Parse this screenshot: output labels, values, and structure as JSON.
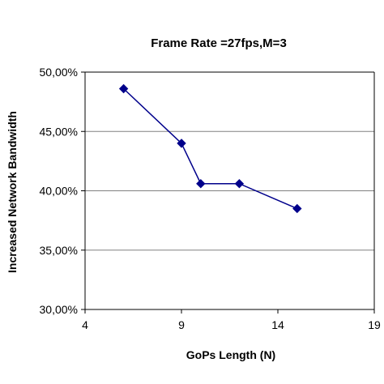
{
  "chart_data": {
    "type": "line",
    "title": "Frame Rate =27fps,M=3",
    "xlabel": "GoPs Length (N)",
    "ylabel": "Increased Network Bandwidth",
    "xlim": [
      4,
      19
    ],
    "ylim": [
      30,
      50
    ],
    "xticks": [
      4,
      9,
      14,
      19
    ],
    "xtick_labels": [
      "4",
      "9",
      "14",
      "19"
    ],
    "yticks": [
      30,
      35,
      40,
      45,
      50
    ],
    "ytick_labels": [
      "30,00%",
      "35,00%",
      "40,00%",
      "45,00%",
      "50,00%"
    ],
    "grid": "horizontal",
    "legend": "none",
    "series": [
      {
        "color": "#00008b",
        "marker": "diamond",
        "x": [
          6,
          9,
          10,
          12,
          15
        ],
        "y": [
          48.6,
          44.0,
          40.6,
          40.6,
          38.5
        ]
      }
    ]
  }
}
